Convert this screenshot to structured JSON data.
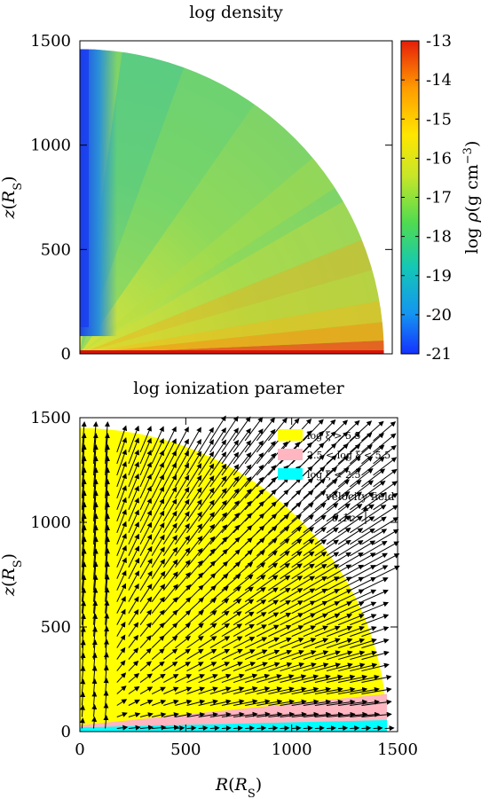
{
  "chart_data": [
    {
      "type": "heatmap",
      "title": "log density",
      "ylabel": "z(R_S)",
      "xlim": [
        0,
        1500
      ],
      "ylim": [
        0,
        1500
      ],
      "yticks": [
        0,
        500,
        1000,
        1500
      ],
      "grid": false,
      "domain": "quarter-disk, radius ~1460",
      "colorbar": {
        "label": "log ρ(g cm⁻³)",
        "range": [
          -21,
          -13
        ],
        "ticks": [
          "-13",
          "-14",
          "-15",
          "-16",
          "-17",
          "-18",
          "-19",
          "-20",
          "-21"
        ],
        "colormap": [
          "#1432ff",
          "#14b4dc",
          "#2ddc78",
          "#b4e628",
          "#ffe600",
          "#ff9b00",
          "#e61e0a"
        ]
      }
    },
    {
      "type": "scatter",
      "title": "log ionization parameter",
      "xlabel": "R(R_S)",
      "ylabel": "z(R_S)",
      "xlim": [
        0,
        1500
      ],
      "ylim": [
        0,
        1500
      ],
      "xticks": [
        0,
        500,
        1000,
        1500
      ],
      "yticks": [
        0,
        500,
        1000,
        1500
      ],
      "legend": {
        "placement": "top-right",
        "entries": [
          {
            "label": "log ξ > 5.5",
            "color": "#ffff00"
          },
          {
            "label": "2.5 < log ξ < 5.5",
            "color": "#ffb6c1"
          },
          {
            "label": "log ξ < 2.5",
            "color": "#00ffff"
          }
        ]
      },
      "regions_z_upper": {
        "cyan_at_R0": 20,
        "cyan_at_R1450": 55,
        "pink_at_R0": 30,
        "pink_at_R1450": 180
      },
      "velocity_key": {
        "label": "velocity field",
        "value_label": "0.1c"
      }
    }
  ]
}
